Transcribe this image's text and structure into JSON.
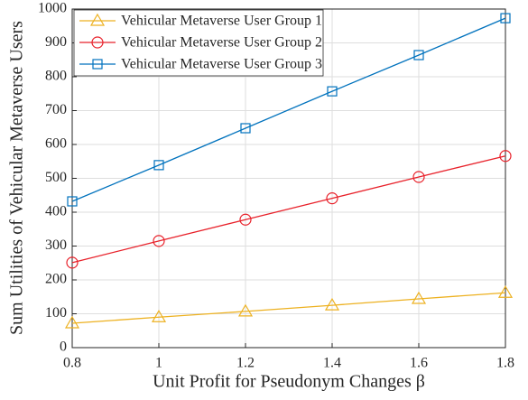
{
  "chart_data": {
    "type": "line",
    "xlabel": "Unit Profit for Pseudonym Changes β",
    "ylabel": "Sum Utilities of Vehicular Metaverse Users",
    "x": [
      0.8,
      1.0,
      1.2,
      1.4,
      1.6,
      1.8
    ],
    "series": [
      {
        "name": "Vehicular Metaverse User Group 1",
        "color": "#edb120",
        "marker": "triangle",
        "values": [
          72,
          90,
          107,
          125,
          144,
          162
        ]
      },
      {
        "name": "Vehicular Metaverse User Group 2",
        "color": "#e8212a",
        "marker": "circle",
        "values": [
          251,
          315,
          378,
          441,
          504,
          566
        ]
      },
      {
        "name": "Vehicular Metaverse User Group 3",
        "color": "#0072bd",
        "marker": "square",
        "values": [
          432,
          539,
          648,
          757,
          864,
          973
        ]
      }
    ],
    "xlim": [
      0.8,
      1.8
    ],
    "xticks": [
      0.8,
      1,
      1.2,
      1.4,
      1.6,
      1.8
    ],
    "ylim": [
      0,
      1000
    ],
    "yticks": [
      0,
      100,
      200,
      300,
      400,
      500,
      600,
      700,
      800,
      900,
      1000
    ],
    "grid": true,
    "legend": "upper-left"
  }
}
